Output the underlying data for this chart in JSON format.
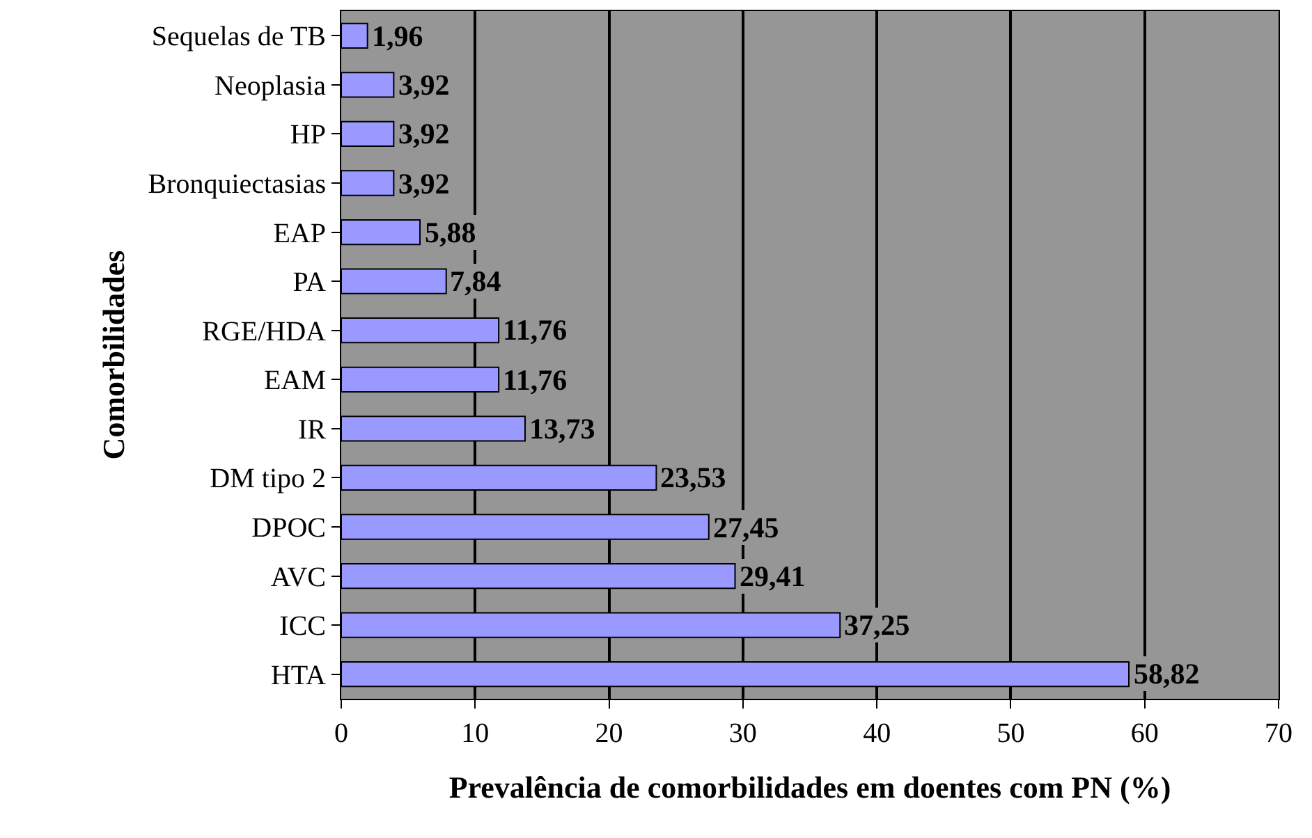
{
  "chart_data": {
    "type": "bar",
    "orientation": "horizontal",
    "xlabel": "Prevalência de comorbilidades em doentes com PN (%)",
    "ylabel": "Comorbilidades",
    "categories": [
      "Sequelas de TB",
      "Neoplasia",
      "HP",
      "Bronquiectasias",
      "EAP",
      "PA",
      "RGE/HDA",
      "EAM",
      "IR",
      "DM tipo 2",
      "DPOC",
      "AVC",
      "ICC",
      "HTA"
    ],
    "values": [
      1.96,
      3.92,
      3.92,
      3.92,
      5.88,
      7.84,
      11.76,
      11.76,
      13.73,
      23.53,
      27.45,
      29.41,
      37.25,
      58.82
    ],
    "value_labels": [
      "1,96",
      "3,92",
      "3,92",
      "3,92",
      "5,88",
      "7,84",
      "11,76",
      "11,76",
      "13,73",
      "23,53",
      "27,45",
      "29,41",
      "37,25",
      "58,82"
    ],
    "color": "#9999ff",
    "xlim": [
      0,
      70
    ],
    "xticks": [
      0,
      10,
      20,
      30,
      40,
      50,
      60,
      70
    ],
    "grid": "x"
  }
}
